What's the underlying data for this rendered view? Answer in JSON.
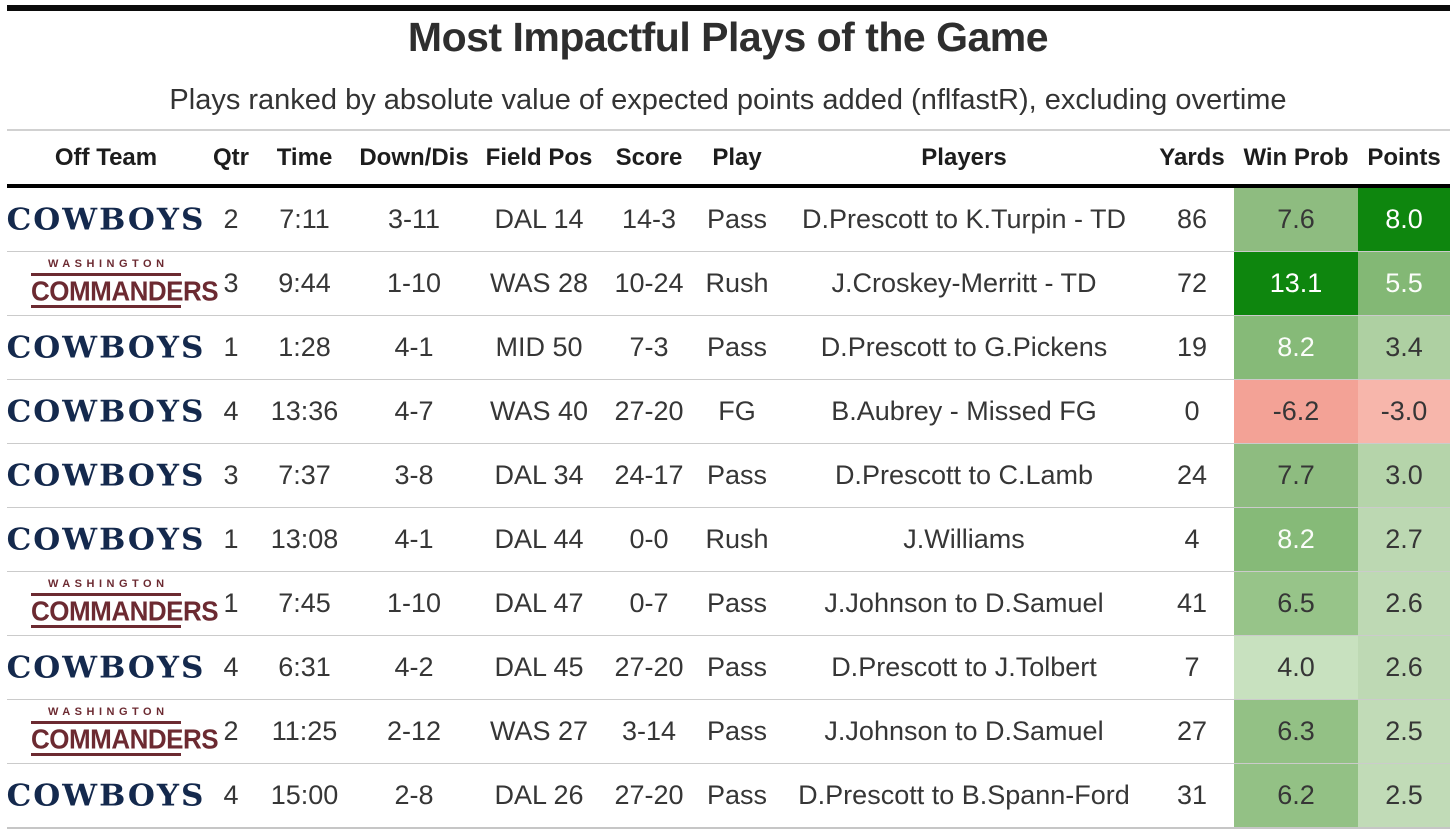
{
  "chart_data": {
    "type": "table",
    "title": "Most Impactful Plays of the Game",
    "subtitle": "Plays ranked by absolute value of expected points added (nflfastR), excluding overtime",
    "columns": [
      {
        "key": "team",
        "label": "Off Team"
      },
      {
        "key": "qtr",
        "label": "Qtr"
      },
      {
        "key": "time",
        "label": "Time"
      },
      {
        "key": "down_dis",
        "label": "Down/Dis"
      },
      {
        "key": "field_pos",
        "label": "Field Pos"
      },
      {
        "key": "score",
        "label": "Score"
      },
      {
        "key": "play",
        "label": "Play"
      },
      {
        "key": "players",
        "label": "Players"
      },
      {
        "key": "yards",
        "label": "Yards"
      },
      {
        "key": "win_prob",
        "label": "Win Prob"
      },
      {
        "key": "points",
        "label": "Points"
      }
    ],
    "rows": [
      {
        "team": "cowboys",
        "qtr": "2",
        "time": "7:11",
        "down_dis": "3-11",
        "field_pos": "DAL 14",
        "score": "14-3",
        "play": "Pass",
        "players": "D.Prescott to K.Turpin - TD",
        "yards": "86",
        "win_prob": {
          "value": "7.6",
          "bg": "#8ebc80",
          "text": "#363636"
        },
        "points": {
          "value": "8.0",
          "bg": "#0e860e",
          "text": "#ffffff"
        }
      },
      {
        "team": "commanders",
        "qtr": "3",
        "time": "9:44",
        "down_dis": "1-10",
        "field_pos": "WAS 28",
        "score": "10-24",
        "play": "Rush",
        "players": "J.Croskey-Merritt - TD",
        "yards": "72",
        "win_prob": {
          "value": "13.1",
          "bg": "#0e860e",
          "text": "#ffffff"
        },
        "points": {
          "value": "5.5",
          "bg": "#83b875",
          "text": "#fbfdfa"
        }
      },
      {
        "team": "cowboys",
        "qtr": "1",
        "time": "1:28",
        "down_dis": "4-1",
        "field_pos": "MID 50",
        "score": "7-3",
        "play": "Pass",
        "players": "D.Prescott to G.Pickens",
        "yards": "19",
        "win_prob": {
          "value": "8.2",
          "bg": "#86ba78",
          "text": "#fbfdfa"
        },
        "points": {
          "value": "3.4",
          "bg": "#aed0a2",
          "text": "#363636"
        }
      },
      {
        "team": "cowboys",
        "qtr": "4",
        "time": "13:36",
        "down_dis": "4-7",
        "field_pos": "WAS 40",
        "score": "27-20",
        "play": "FG",
        "players": "B.Aubrey - Missed FG",
        "yards": "0",
        "win_prob": {
          "value": "-6.2",
          "bg": "#f3a296",
          "text": "#363636"
        },
        "points": {
          "value": "-3.0",
          "bg": "#f7b6ab",
          "text": "#363636"
        }
      },
      {
        "team": "cowboys",
        "qtr": "3",
        "time": "7:37",
        "down_dis": "3-8",
        "field_pos": "DAL 34",
        "score": "24-17",
        "play": "Pass",
        "players": "D.Prescott to C.Lamb",
        "yards": "24",
        "win_prob": {
          "value": "7.7",
          "bg": "#8ebc80",
          "text": "#363636"
        },
        "points": {
          "value": "3.0",
          "bg": "#b5d4aa",
          "text": "#363636"
        }
      },
      {
        "team": "cowboys",
        "qtr": "1",
        "time": "13:08",
        "down_dis": "4-1",
        "field_pos": "DAL 44",
        "score": "0-0",
        "play": "Rush",
        "players": "J.Williams",
        "yards": "4",
        "win_prob": {
          "value": "8.2",
          "bg": "#86ba78",
          "text": "#fbfdfa"
        },
        "points": {
          "value": "2.7",
          "bg": "#bcd8b2",
          "text": "#363636"
        }
      },
      {
        "team": "commanders",
        "qtr": "1",
        "time": "7:45",
        "down_dis": "1-10",
        "field_pos": "DAL 47",
        "score": "0-7",
        "play": "Pass",
        "players": "J.Johnson to D.Samuel",
        "yards": "41",
        "win_prob": {
          "value": "6.5",
          "bg": "#97c489",
          "text": "#363636"
        },
        "points": {
          "value": "2.6",
          "bg": "#bed9b4",
          "text": "#363636"
        }
      },
      {
        "team": "cowboys",
        "qtr": "4",
        "time": "6:31",
        "down_dis": "4-2",
        "field_pos": "DAL 45",
        "score": "27-20",
        "play": "Pass",
        "players": "D.Prescott to J.Tolbert",
        "yards": "7",
        "win_prob": {
          "value": "4.0",
          "bg": "#c8e1bf",
          "text": "#363636"
        },
        "points": {
          "value": "2.6",
          "bg": "#bed9b4",
          "text": "#363636"
        }
      },
      {
        "team": "commanders",
        "qtr": "2",
        "time": "11:25",
        "down_dis": "2-12",
        "field_pos": "WAS 27",
        "score": "3-14",
        "play": "Pass",
        "players": "J.Johnson to D.Samuel",
        "yards": "27",
        "win_prob": {
          "value": "6.3",
          "bg": "#93c185",
          "text": "#363636"
        },
        "points": {
          "value": "2.5",
          "bg": "#c1dbb7",
          "text": "#363636"
        }
      },
      {
        "team": "cowboys",
        "qtr": "4",
        "time": "15:00",
        "down_dis": "2-8",
        "field_pos": "DAL 26",
        "score": "27-20",
        "play": "Pass",
        "players": "D.Prescott to B.Spann-Ford",
        "yards": "31",
        "win_prob": {
          "value": "6.2",
          "bg": "#93c185",
          "text": "#363636"
        },
        "points": {
          "value": "2.5",
          "bg": "#c1dbb7",
          "text": "#363636"
        }
      }
    ]
  },
  "teams": {
    "cowboys": {
      "name": "Dallas Cowboys",
      "wordmark": "COWBOYS",
      "color": "#14294d"
    },
    "commanders": {
      "name": "Washington Commanders",
      "wordmark_top": "WASHINGTON",
      "wordmark_main": "COMMANDERS",
      "color": "#6c2a31"
    }
  },
  "style": {
    "positive_dark_green": "#0e860e",
    "positive_mid_green": "#8ebc80",
    "positive_light_green": "#c8e1bf",
    "negative_red": "#f3a296",
    "top_bar_color": "#0b0b0b",
    "header_text_color": "#1d1d1d",
    "body_text_color": "#363636"
  }
}
